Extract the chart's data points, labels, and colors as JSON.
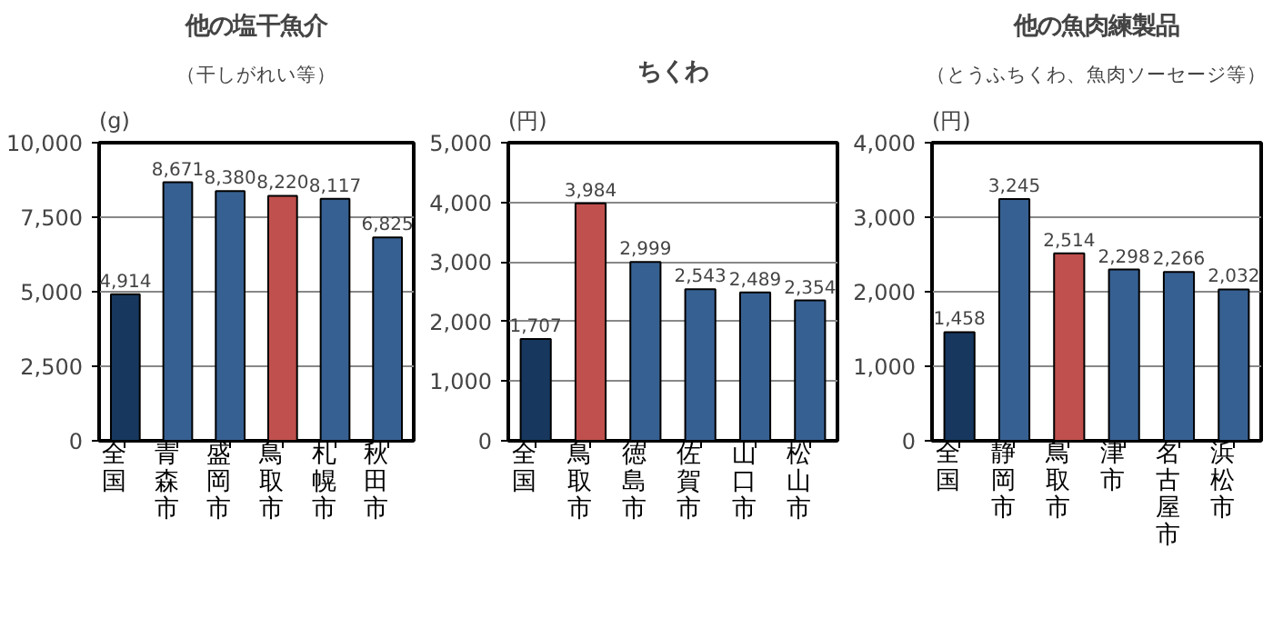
{
  "chart_data": [
    {
      "type": "bar",
      "title": "他の塩干魚介",
      "subtitle": "（干しがれい等）",
      "ylabel": "(g)",
      "categories": [
        "全国",
        "青森市",
        "盛岡市",
        "鳥取市",
        "札幌市",
        "秋田市"
      ],
      "values": [
        4914,
        8671,
        8380,
        8220,
        8117,
        6825
      ],
      "value_labels": [
        "4,914",
        "8,671",
        "8,380",
        "8,220",
        "8,117",
        "6,825"
      ],
      "colors": [
        "#17375e",
        "#376092",
        "#376092",
        "#c0504d",
        "#376092",
        "#376092"
      ],
      "ylim": [
        0,
        10000
      ],
      "yticks": [
        0,
        {
          "value": 2500,
          "label": "2,500"
        },
        {
          "value": 5000,
          "label": "5,000"
        },
        {
          "value": 7500,
          "label": "7,500"
        },
        {
          "value": 10000,
          "label": "10,000"
        }
      ],
      "grid": "y",
      "data_labels": true
    },
    {
      "type": "bar",
      "title": "ちくわ",
      "ylabel": "(円)",
      "categories": [
        "全国",
        "鳥取市",
        "徳島市",
        "佐賀市",
        "山口市",
        "松山市"
      ],
      "values": [
        1707,
        3984,
        2999,
        2543,
        2489,
        2354
      ],
      "value_labels": [
        "1,707",
        "3,984",
        "2,999",
        "2,543",
        "2,489",
        "2,354"
      ],
      "colors": [
        "#17375e",
        "#c0504d",
        "#376092",
        "#376092",
        "#376092",
        "#376092"
      ],
      "ylim": [
        0,
        5000
      ],
      "yticks": [
        0,
        {
          "value": 1000,
          "label": "1,000"
        },
        {
          "value": 2000,
          "label": "2,000"
        },
        {
          "value": 3000,
          "label": "3,000"
        },
        {
          "value": 4000,
          "label": "4,000"
        },
        {
          "value": 5000,
          "label": "5,000"
        }
      ],
      "grid": "y",
      "data_labels": true
    },
    {
      "type": "bar",
      "title": "他の魚肉練製品",
      "subtitle": "（とうふちくわ、魚肉ソーセージ等）",
      "ylabel": "(円)",
      "categories": [
        "全国",
        "静岡市",
        "鳥取市",
        "津市",
        "名古屋市",
        "浜松市"
      ],
      "values": [
        1458,
        3245,
        2514,
        2298,
        2266,
        2032
      ],
      "value_labels": [
        "1,458",
        "3,245",
        "2,514",
        "2,298",
        "2,266",
        "2,032"
      ],
      "colors": [
        "#17375e",
        "#376092",
        "#c0504d",
        "#376092",
        "#376092",
        "#376092"
      ],
      "ylim": [
        0,
        4000
      ],
      "yticks": [
        0,
        {
          "value": 1000,
          "label": "1,000"
        },
        {
          "value": 2000,
          "label": "2,000"
        },
        {
          "value": 3000,
          "label": "3,000"
        },
        {
          "value": 4000,
          "label": "4,000"
        }
      ],
      "grid": "y",
      "data_labels": true
    }
  ]
}
